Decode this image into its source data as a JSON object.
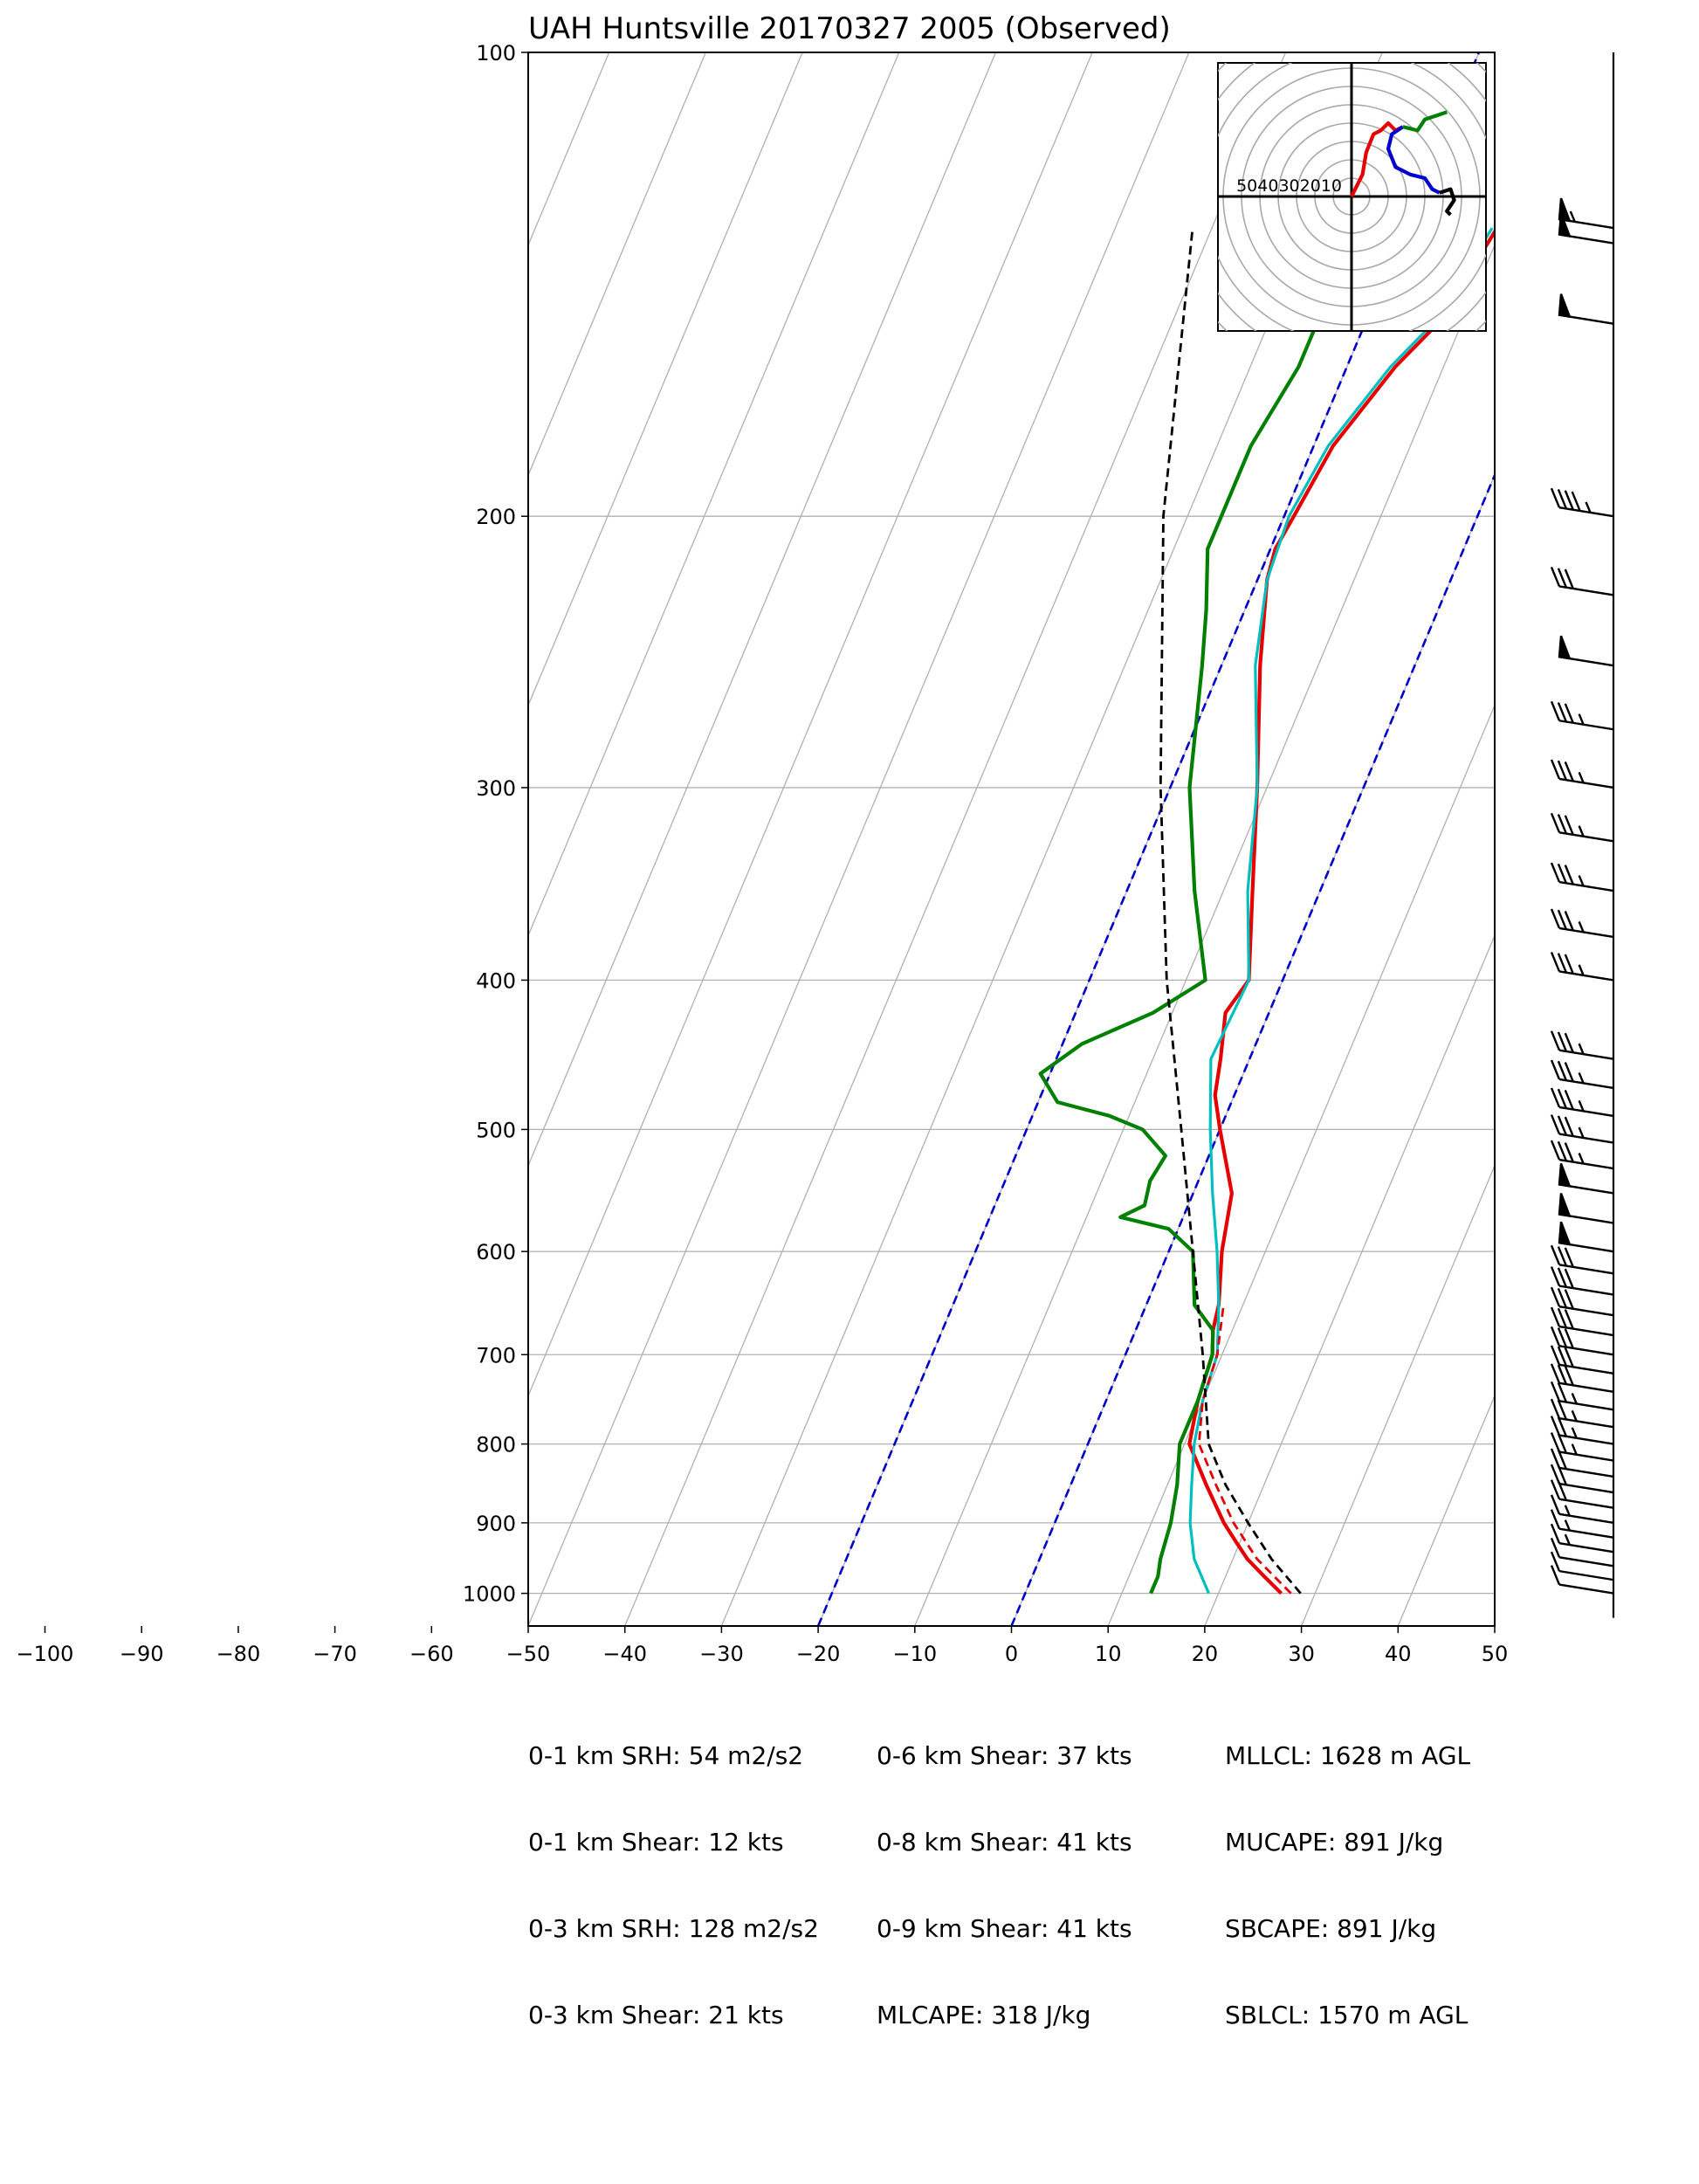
{
  "chart_data": {
    "type": "skew-t",
    "title": "UAH Huntsville 20170327 2005   (Observed)",
    "pressure_ticks": [
      "100",
      "200",
      "300",
      "400",
      "500",
      "600",
      "700",
      "800",
      "900",
      "1000"
    ],
    "temperature_ticks": [
      "−100",
      "−90",
      "−80",
      "−70",
      "−60",
      "−50",
      "−40",
      "−30",
      "−20",
      "−10",
      "0",
      "10",
      "20",
      "30",
      "40",
      "50"
    ],
    "ylim": [
      1050,
      100
    ],
    "xlim": [
      -50,
      50
    ],
    "grid": true,
    "colors": {
      "temperature": "#e60000",
      "dewpoint": "#008000",
      "virtual_temperature": "#00bfbf",
      "parcel": "#000000",
      "isotherm_marker": "#0000cc",
      "grid": "#b0b0b0"
    },
    "series": [
      {
        "id": "temperature",
        "style": "solid",
        "points": [
          [
            1000,
            26.5
          ],
          [
            975,
            24
          ],
          [
            950,
            21.5
          ],
          [
            925,
            19.5
          ],
          [
            900,
            17.5
          ],
          [
            850,
            14
          ],
          [
            800,
            10.5
          ],
          [
            750,
            9.5
          ],
          [
            700,
            9
          ],
          [
            675,
            8
          ],
          [
            650,
            7.5
          ],
          [
            600,
            5.5
          ],
          [
            550,
            4
          ],
          [
            500,
            0
          ],
          [
            475,
            -2
          ],
          [
            450,
            -3
          ],
          [
            420,
            -4.5
          ],
          [
            400,
            -3.5
          ],
          [
            350,
            -7
          ],
          [
            300,
            -11
          ],
          [
            250,
            -16
          ],
          [
            220,
            -19
          ],
          [
            210,
            -19.5
          ],
          [
            200,
            -19
          ],
          [
            180,
            -18
          ],
          [
            160,
            -15
          ],
          [
            150,
            -12.5
          ],
          [
            140,
            -11.5
          ],
          [
            130,
            -10.5
          ]
        ]
      },
      {
        "id": "dewpoint",
        "style": "solid",
        "points": [
          [
            1000,
            13
          ],
          [
            975,
            13
          ],
          [
            950,
            12.5
          ],
          [
            900,
            12
          ],
          [
            850,
            11
          ],
          [
            800,
            9.5
          ],
          [
            750,
            9.5
          ],
          [
            700,
            9
          ],
          [
            675,
            8
          ],
          [
            650,
            5
          ],
          [
            600,
            2.5
          ],
          [
            580,
            -1
          ],
          [
            570,
            -6.5
          ],
          [
            560,
            -4.5
          ],
          [
            540,
            -5
          ],
          [
            520,
            -4.5
          ],
          [
            500,
            -8
          ],
          [
            490,
            -12
          ],
          [
            480,
            -18
          ],
          [
            460,
            -21
          ],
          [
            440,
            -18
          ],
          [
            420,
            -12
          ],
          [
            400,
            -8
          ],
          [
            350,
            -13
          ],
          [
            300,
            -18
          ],
          [
            250,
            -22
          ],
          [
            230,
            -24
          ],
          [
            210,
            -26.5
          ],
          [
            200,
            -26.5
          ],
          [
            180,
            -26.5
          ],
          [
            160,
            -25
          ],
          [
            150,
            -25
          ],
          [
            140,
            -28
          ],
          [
            130,
            -29
          ]
        ]
      },
      {
        "id": "virtual_temperature",
        "style": "solid",
        "points": [
          [
            1000,
            19
          ],
          [
            950,
            16
          ],
          [
            900,
            14
          ],
          [
            850,
            12.5
          ],
          [
            800,
            11
          ],
          [
            750,
            10
          ],
          [
            700,
            9.5
          ],
          [
            650,
            7.5
          ],
          [
            600,
            5
          ],
          [
            550,
            2
          ],
          [
            500,
            -1
          ],
          [
            450,
            -4
          ],
          [
            400,
            -3.5
          ],
          [
            350,
            -7.5
          ],
          [
            300,
            -11
          ],
          [
            250,
            -16.5
          ],
          [
            220,
            -19
          ],
          [
            200,
            -19.5
          ],
          [
            180,
            -18.5
          ],
          [
            160,
            -15.5
          ],
          [
            150,
            -13
          ],
          [
            140,
            -12
          ],
          [
            130,
            -11
          ]
        ]
      },
      {
        "id": "temperature_dashed",
        "style": "dashed",
        "points": [
          [
            1000,
            27.5
          ],
          [
            950,
            22.5
          ],
          [
            900,
            18.5
          ],
          [
            850,
            15
          ],
          [
            800,
            11.5
          ],
          [
            750,
            10
          ],
          [
            700,
            9.5
          ],
          [
            650,
            8
          ]
        ]
      },
      {
        "id": "parcel",
        "style": "dashed",
        "points": [
          [
            1000,
            28.5
          ],
          [
            950,
            24
          ],
          [
            900,
            20
          ],
          [
            850,
            16
          ],
          [
            800,
            12.5
          ],
          [
            700,
            8
          ],
          [
            600,
            2.5
          ],
          [
            500,
            -4
          ],
          [
            400,
            -12
          ],
          [
            300,
            -21
          ],
          [
            200,
            -32.5
          ],
          [
            130,
            -42
          ]
        ]
      }
    ],
    "blue_dashed_isotherms": [
      -20,
      0
    ],
    "hodograph": {
      "ring_labels": [
        "50",
        "40",
        "30",
        "20",
        "10"
      ],
      "traces": [
        {
          "color": "#e60000",
          "points": [
            [
              0,
              0
            ],
            [
              3,
              6
            ],
            [
              4,
              12
            ],
            [
              6,
              17
            ],
            [
              8,
              18
            ],
            [
              10,
              20
            ],
            [
              12,
              18
            ],
            [
              14,
              19
            ]
          ]
        },
        {
          "color": "#0000cc",
          "points": [
            [
              14,
              19
            ],
            [
              11,
              17
            ],
            [
              10,
              13
            ],
            [
              12,
              8
            ],
            [
              16,
              6
            ],
            [
              20,
              5
            ],
            [
              22,
              2
            ],
            [
              24,
              1
            ]
          ]
        },
        {
          "color": "#008000",
          "points": [
            [
              14,
              19
            ],
            [
              18,
              18
            ],
            [
              20,
              21
            ],
            [
              23,
              22
            ],
            [
              26,
              23
            ]
          ]
        },
        {
          "color": "#000000",
          "points": [
            [
              24,
              1
            ],
            [
              27,
              2
            ],
            [
              28,
              -1
            ],
            [
              26,
              -4
            ],
            [
              27,
              -5
            ]
          ]
        }
      ]
    },
    "wind_barbs": [
      {
        "p": 130,
        "speed": 55
      },
      {
        "p": 133,
        "speed": 50
      },
      {
        "p": 150,
        "speed": 50
      },
      {
        "p": 200,
        "speed": 45
      },
      {
        "p": 225,
        "speed": 30
      },
      {
        "p": 250,
        "speed": 50
      },
      {
        "p": 275,
        "speed": 35
      },
      {
        "p": 300,
        "speed": 35
      },
      {
        "p": 325,
        "speed": 35
      },
      {
        "p": 350,
        "speed": 35
      },
      {
        "p": 375,
        "speed": 35
      },
      {
        "p": 400,
        "speed": 35
      },
      {
        "p": 450,
        "speed": 35
      },
      {
        "p": 470,
        "speed": 35
      },
      {
        "p": 490,
        "speed": 35
      },
      {
        "p": 510,
        "speed": 35
      },
      {
        "p": 530,
        "speed": 35
      },
      {
        "p": 550,
        "speed": 50
      },
      {
        "p": 575,
        "speed": 50
      },
      {
        "p": 600,
        "speed": 50
      },
      {
        "p": 620,
        "speed": 30
      },
      {
        "p": 640,
        "speed": 30
      },
      {
        "p": 660,
        "speed": 30
      },
      {
        "p": 680,
        "speed": 30
      },
      {
        "p": 700,
        "speed": 30
      },
      {
        "p": 720,
        "speed": 30
      },
      {
        "p": 740,
        "speed": 30
      },
      {
        "p": 760,
        "speed": 25
      },
      {
        "p": 780,
        "speed": 25
      },
      {
        "p": 800,
        "speed": 25
      },
      {
        "p": 820,
        "speed": 25
      },
      {
        "p": 840,
        "speed": 20
      },
      {
        "p": 860,
        "speed": 20
      },
      {
        "p": 880,
        "speed": 20
      },
      {
        "p": 900,
        "speed": 15
      },
      {
        "p": 920,
        "speed": 15
      },
      {
        "p": 940,
        "speed": 15
      },
      {
        "p": 960,
        "speed": 10
      },
      {
        "p": 980,
        "speed": 10
      },
      {
        "p": 1000,
        "speed": 10
      }
    ]
  },
  "stats": {
    "col1": [
      "0-1 km SRH: 54 m2/s2",
      "0-1 km Shear: 12 kts",
      "0-3 km SRH: 128 m2/s2",
      "0-3 km Shear: 21 kts"
    ],
    "col2": [
      "0-6 km Shear: 37 kts",
      "0-8 km Shear: 41 kts",
      "0-9 km Shear: 41 kts",
      "MLCAPE: 318 J/kg"
    ],
    "col3": [
      "MLLCL: 1628 m AGL",
      "MUCAPE: 891 J/kg",
      "SBCAPE: 891 J/kg",
      "SBLCL: 1570 m AGL"
    ]
  }
}
